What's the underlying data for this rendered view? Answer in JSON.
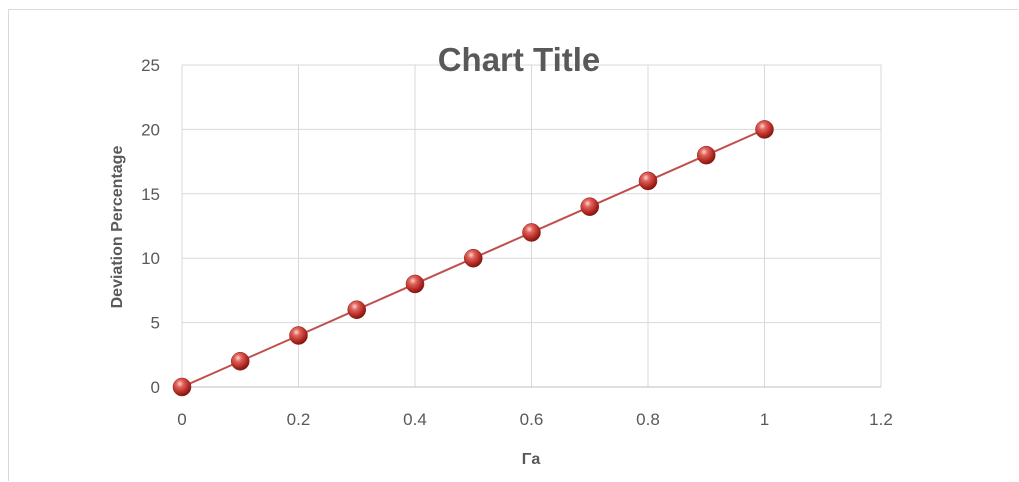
{
  "chart_data": {
    "type": "scatter",
    "title": "Chart Title",
    "xlabel": "Γa",
    "ylabel": "Deviation Percentage",
    "xlim": [
      0,
      1.2
    ],
    "ylim": [
      0,
      25
    ],
    "x_ticks": [
      "0",
      "0.2",
      "0.4",
      "0.6",
      "0.8",
      "1",
      "1.2"
    ],
    "y_ticks": [
      "0",
      "5",
      "10",
      "15",
      "20",
      "25"
    ],
    "grid": true,
    "legend": "none",
    "series": [
      {
        "x": [
          0,
          0.1,
          0.2,
          0.3,
          0.4,
          0.5,
          0.6,
          0.7,
          0.8,
          0.9,
          1.0
        ],
        "y": [
          0,
          2,
          4,
          6,
          8,
          10,
          12,
          14,
          16,
          18,
          20
        ],
        "color": "#c0504d",
        "marker": "sphere",
        "line": "straight"
      }
    ]
  }
}
